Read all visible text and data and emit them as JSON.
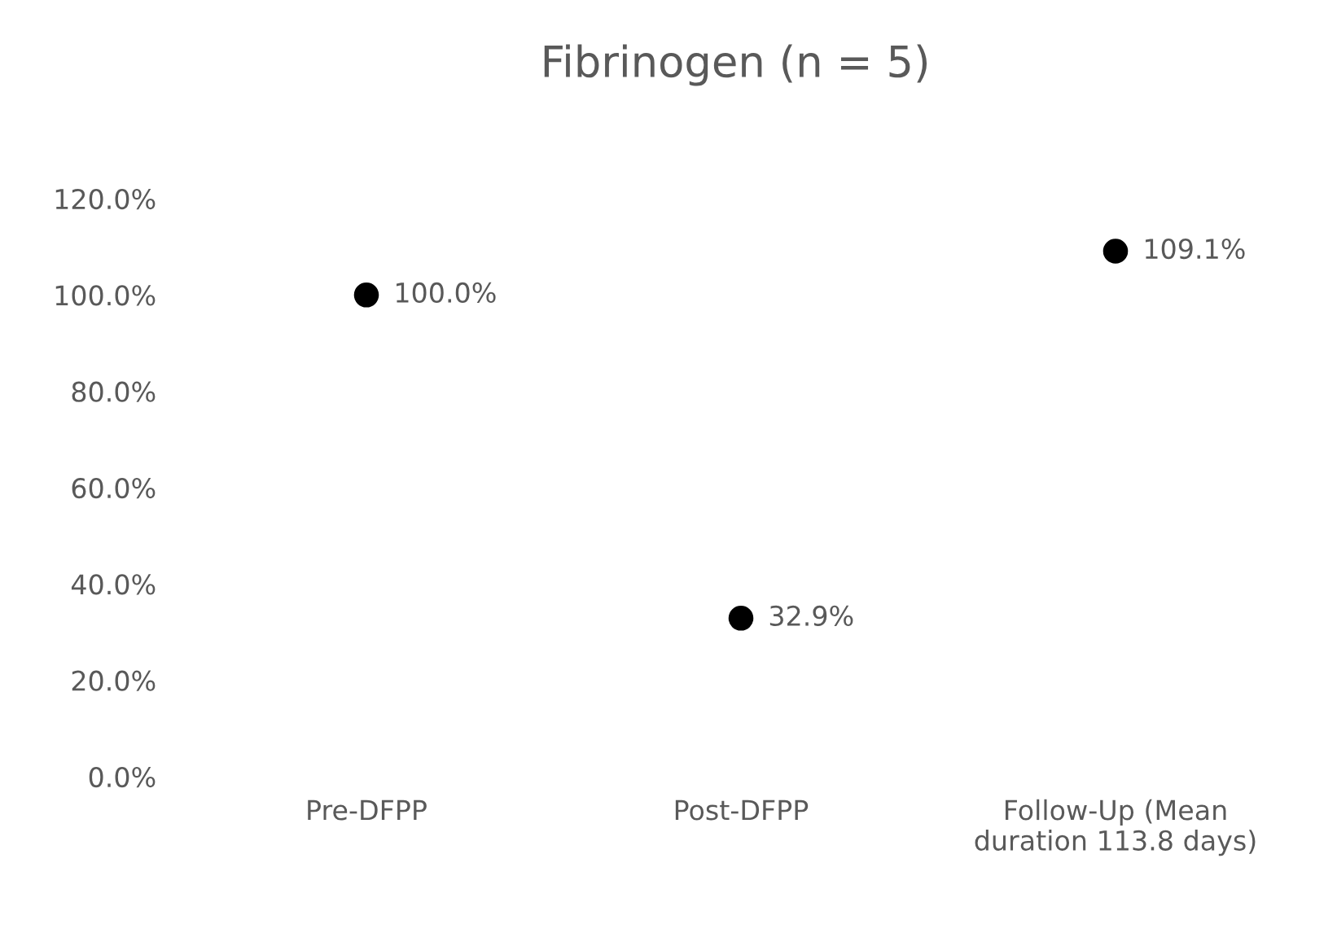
{
  "chart_data": {
    "type": "scatter",
    "title": "Fibrinogen (n = 5)",
    "categories": [
      "Pre-DFPP",
      "Post-DFPP",
      "Follow-Up (Mean\nduration 113.8 days)"
    ],
    "values": [
      100.0,
      32.9,
      109.1
    ],
    "color": "#000000",
    "marker": "circle",
    "value_labels": [
      "100.0%",
      "32.9%",
      "109.1%"
    ],
    "ylim": [
      0,
      120
    ],
    "yticks": [
      {
        "value": 0,
        "label": "0.0%"
      },
      {
        "value": 20,
        "label": "20.0%"
      },
      {
        "value": 40,
        "label": "40.0%"
      },
      {
        "value": 60,
        "label": "60.0%"
      },
      {
        "value": 80,
        "label": "80.0%"
      },
      {
        "value": 100,
        "label": "100.0%"
      },
      {
        "value": 120,
        "label": "120.0%"
      }
    ],
    "grid": false,
    "legend": false
  }
}
